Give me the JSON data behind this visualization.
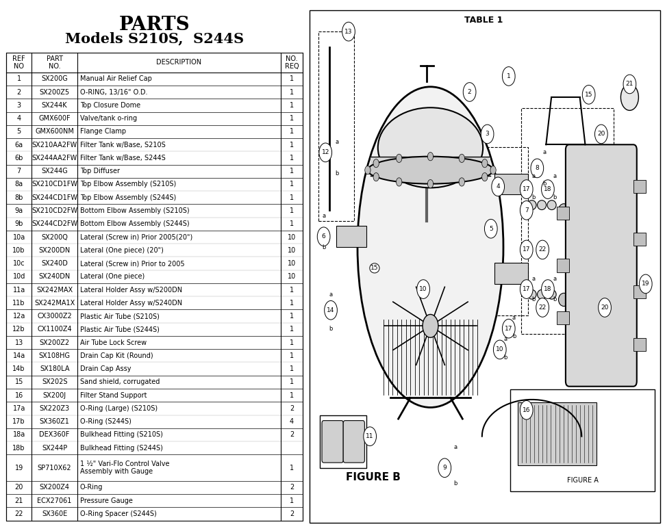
{
  "title_line1": "PARTS",
  "title_line2": "Models S210S,  S244S",
  "col_headers": [
    "REF\nNO",
    "PART\nNO.",
    "DESCRIPTION",
    "NO.\nREQ"
  ],
  "rows": [
    [
      "1",
      "SX200G",
      "Manual Air Relief Cap",
      "1"
    ],
    [
      "2",
      "SX200Z5",
      "O-RING, 13/16\" O.D.",
      "1"
    ],
    [
      "3",
      "SX244K",
      "Top Closure Dome",
      "1"
    ],
    [
      "4",
      "GMX600F",
      "Valve/tank o-ring",
      "1"
    ],
    [
      "5",
      "GMX600NM",
      "Flange Clamp",
      "1"
    ],
    [
      "6a",
      "SX210AA2FW",
      "Filter Tank w/Base, S210S",
      "1"
    ],
    [
      "6b",
      "SX244AA2FW",
      "Filter Tank w/Base, S244S",
      "1"
    ],
    [
      "7",
      "SX244G",
      "Top Diffuser",
      "1"
    ],
    [
      "8a",
      "SX210CD1FW",
      "Top Elbow Assembly (S210S)",
      "1"
    ],
    [
      "8b",
      "SX244CD1FW",
      "Top Elbow Assembly (S244S)",
      "1"
    ],
    [
      "9a",
      "SX210CD2FW",
      "Bottom Elbow Assembly (S210S)",
      "1"
    ],
    [
      "9b",
      "SX244CD2FW",
      "Bottom Elbow Assembly (S244S)",
      "1"
    ],
    [
      "10a",
      "SX200Q",
      "Lateral (Screw in) Prior 2005(20\")",
      "10"
    ],
    [
      "10b",
      "SX200DN",
      "Lateral (One piece) (20\")",
      "10"
    ],
    [
      "10c",
      "SX240D",
      "Lateral (Screw in) Prior to 2005",
      "10"
    ],
    [
      "10d",
      "SX240DN",
      "Lateral (One piece)",
      "10"
    ],
    [
      "11a",
      "SX242MAX",
      "Lateral Holder Assy w/S200DN",
      "1"
    ],
    [
      "11b",
      "SX242MA1X",
      "Lateral Holder Assy w/S240DN",
      "1"
    ],
    [
      "12a",
      "CX3000Z2",
      "Plastic Air Tube (S210S)",
      "1"
    ],
    [
      "12b",
      "CX1100Z4",
      "Plastic Air Tube (S244S)",
      "1"
    ],
    [
      "13",
      "SX200Z2",
      "Air Tube Lock Screw",
      "1"
    ],
    [
      "14a",
      "SX108HG",
      "Drain Cap Kit (Round)",
      "1"
    ],
    [
      "14b",
      "SX180LA",
      "Drain Cap Assy",
      "1"
    ],
    [
      "15",
      "SX202S",
      "Sand shield, corrugated",
      "1"
    ],
    [
      "16",
      "SX200J",
      "Filter Stand Support",
      "1"
    ],
    [
      "17a",
      "SX220Z3",
      "O-Ring (Large) (S210S)",
      "2"
    ],
    [
      "17b",
      "SX360Z1",
      "O-Ring (S244S)",
      "4"
    ],
    [
      "18a",
      "DEX360F",
      "Bulkhead Fitting (S210S)",
      "2"
    ],
    [
      "18b",
      "SX244P",
      "Bulkhead Fitting (S244S)",
      ""
    ],
    [
      "19",
      "SP710X62",
      "1 ½\" Vari-Flo Control Valve\nAssembly with Gauge",
      "1"
    ],
    [
      "20",
      "SX200Z4",
      "O-Ring",
      "2"
    ],
    [
      "21",
      "ECX27061",
      "Pressure Gauge",
      "1"
    ],
    [
      "22",
      "SX360E",
      "O-Ring Spacer (S244S)",
      "2"
    ]
  ],
  "row_groups": [
    [
      0
    ],
    [
      1
    ],
    [
      2
    ],
    [
      3
    ],
    [
      4
    ],
    [
      5,
      6
    ],
    [
      7
    ],
    [
      8,
      9
    ],
    [
      10,
      11
    ],
    [
      12,
      13,
      14,
      15
    ],
    [
      16,
      17
    ],
    [
      18,
      19
    ],
    [
      20
    ],
    [
      21,
      22
    ],
    [
      23
    ],
    [
      24
    ],
    [
      25,
      26
    ],
    [
      27,
      28
    ],
    [
      29
    ],
    [
      30
    ],
    [
      31
    ],
    [
      32
    ]
  ],
  "bg_color": "#ffffff",
  "figure_b_label": "FIGURE B",
  "figure_a_label": "FIGURE A",
  "page_header": "TABLE 1"
}
